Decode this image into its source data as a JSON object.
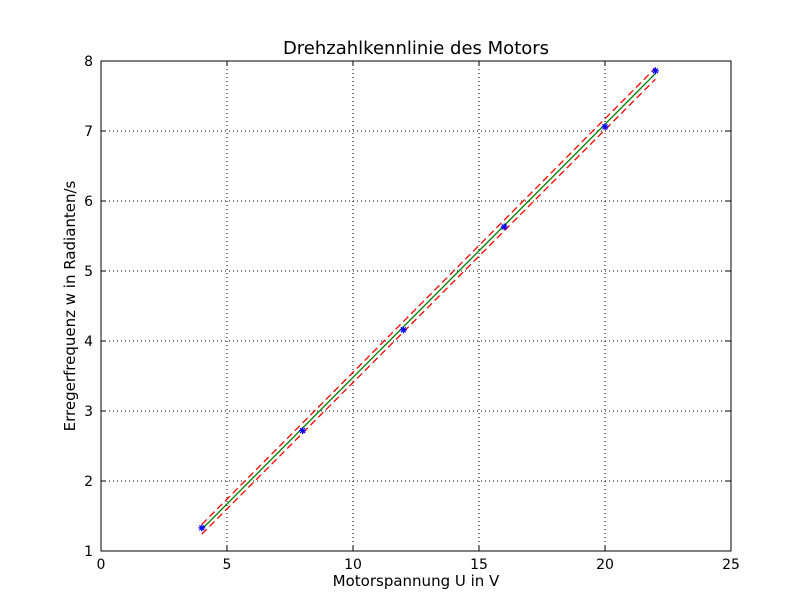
{
  "chart_data": {
    "type": "line",
    "title": "Drehzahlkennlinie des Motors",
    "xlabel": "Motorspannung U in V",
    "ylabel": "Erregerfrequenz w in Radianten/s",
    "xlim": [
      0,
      25
    ],
    "ylim": [
      1,
      8
    ],
    "xticks": [
      "0",
      "5",
      "10",
      "15",
      "20",
      "25"
    ],
    "yticks": [
      "1",
      "2",
      "3",
      "4",
      "5",
      "6",
      "7",
      "8"
    ],
    "grid": true,
    "measurements": {
      "x": [
        4,
        8,
        12,
        16,
        20,
        22
      ],
      "y": [
        1.33,
        2.72,
        4.16,
        5.63,
        7.06,
        7.86
      ],
      "marker": "*",
      "color": "#0000ff"
    },
    "fit": {
      "x": [
        4,
        22
      ],
      "y": [
        1.31,
        7.82
      ],
      "color": "#008000",
      "style": "solid"
    },
    "bounds": [
      {
        "x": [
          4,
          22
        ],
        "y": [
          1.38,
          7.9
        ],
        "color": "#ff0000",
        "style": "dashed"
      },
      {
        "x": [
          4,
          22
        ],
        "y": [
          1.24,
          7.74
        ],
        "color": "#ff0000",
        "style": "dashed"
      }
    ],
    "colors": {
      "axes": "#000000",
      "grid": "#000000",
      "background": "#ffffff"
    }
  }
}
